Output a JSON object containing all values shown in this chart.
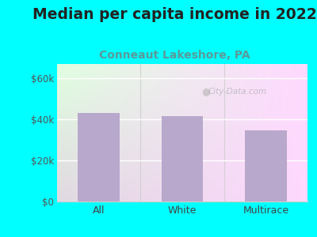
{
  "title": "Median per capita income in 2022",
  "subtitle": "Conneaut Lakeshore, PA",
  "categories": [
    "All",
    "White",
    "Multirace"
  ],
  "values": [
    43000,
    41500,
    34500
  ],
  "bar_color": "#b8a8cc",
  "title_fontsize": 13.5,
  "subtitle_fontsize": 10,
  "subtitle_color": "#5a9a9a",
  "title_color": "#222222",
  "yticks": [
    0,
    20000,
    40000,
    60000
  ],
  "ytick_labels": [
    "$0",
    "$20k",
    "$40k",
    "$60k"
  ],
  "ylim": [
    0,
    67000
  ],
  "bg_outer": "#00ffff",
  "watermark": "City-Data.com",
  "tick_color": "#555555",
  "axis_color": "#cccccc",
  "xtick_color": "#444444"
}
